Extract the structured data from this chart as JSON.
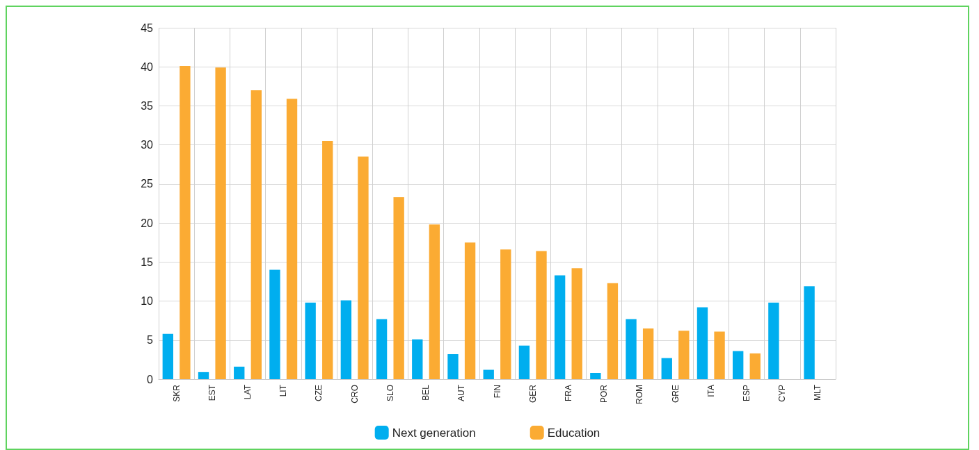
{
  "chart_data": {
    "type": "bar",
    "categories": [
      "SKR",
      "EST",
      "LAT",
      "LIT",
      "CZE",
      "CRO",
      "SLO",
      "BEL",
      "AUT",
      "FIN",
      "GER",
      "FRA",
      "POR",
      "ROM",
      "GRE",
      "ITA",
      "ESP",
      "CYP",
      "MLT"
    ],
    "series": [
      {
        "name": "Next generation",
        "color": "#00aeef",
        "values": [
          5.8,
          0.9,
          1.6,
          14.0,
          9.8,
          10.1,
          7.7,
          5.1,
          3.2,
          1.2,
          4.3,
          13.3,
          0.8,
          7.7,
          2.7,
          9.2,
          3.6,
          9.8,
          11.9
        ]
      },
      {
        "name": "Education",
        "color": "#fbab33",
        "values": [
          40.1,
          39.9,
          37.0,
          35.9,
          30.5,
          28.5,
          23.3,
          19.8,
          17.5,
          16.6,
          16.4,
          14.2,
          12.3,
          6.5,
          6.2,
          6.1,
          3.3,
          null,
          null
        ]
      }
    ],
    "ylim": [
      0,
      45
    ],
    "yticks": [
      0,
      5,
      10,
      15,
      20,
      25,
      30,
      35,
      40,
      45
    ],
    "grid": true,
    "legend": "bottom"
  }
}
